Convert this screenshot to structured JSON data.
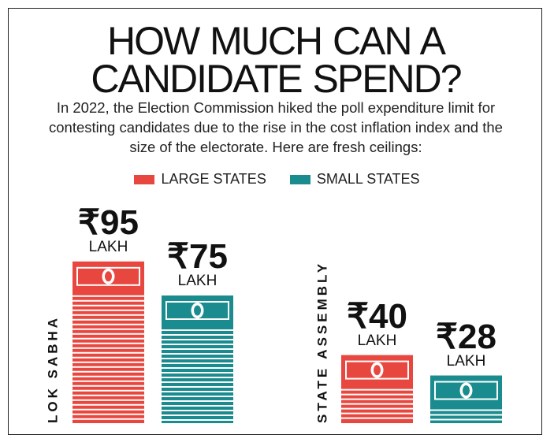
{
  "chart_data": {
    "type": "bar",
    "title": "HOW MUCH CAN A CANDIDATE SPEND?",
    "subtitle": "In 2022, the Election Commission hiked the poll expenditure limit for contesting candidates due to the rise in the cost inflation index and the size of the electorate. Here are fresh ceilings:",
    "categories": [
      "LOK SABHA",
      "STATE ASSEMBLY"
    ],
    "series": [
      {
        "name": "LARGE STATES",
        "color": "#e8473f",
        "values": [
          95,
          40
        ],
        "value_labels": [
          "₹95\nLAKH",
          "₹40\nLAKH"
        ]
      },
      {
        "name": "SMALL STATES",
        "color": "#1a8c8f",
        "values": [
          75,
          28
        ],
        "value_labels": [
          "₹75\nLAKH",
          "₹28\nLAKH"
        ]
      }
    ],
    "ylim": [
      0,
      100
    ]
  }
}
